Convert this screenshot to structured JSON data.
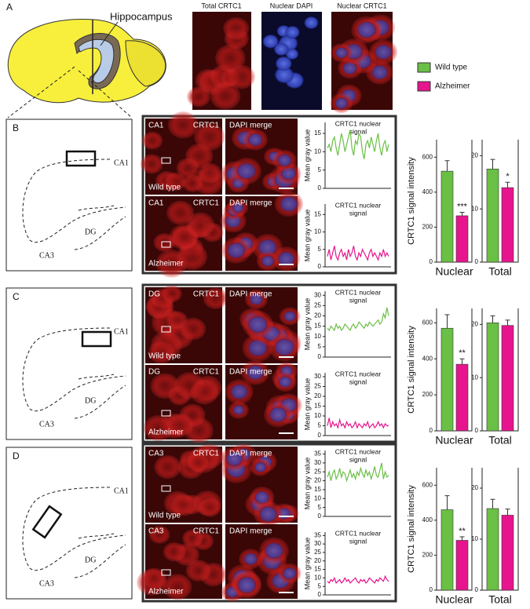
{
  "panel_a": {
    "label": "A",
    "hippocampus": "Hippocampus",
    "image_titles": [
      "Total CRTC1",
      "Nuclear DAPI",
      "Nuclear CRTC1"
    ]
  },
  "legend": [
    {
      "name": "Wild type",
      "color": "#6abf45"
    },
    {
      "name": "Alzheimer",
      "color": "#e6158d"
    }
  ],
  "panels": [
    {
      "label": "B",
      "diagram_labels": [
        "CA1",
        "DG",
        "CA3"
      ],
      "region": "CA1",
      "stain": "CRTC1",
      "merge": "DAPI merge",
      "row_labels": [
        "Wild type",
        "Alzheimer"
      ]
    },
    {
      "label": "C",
      "diagram_labels": [
        "CA1",
        "DG",
        "CA3"
      ],
      "region": "DG",
      "stain": "CRTC1",
      "merge": "DAPI merge",
      "row_labels": [
        "Wild type",
        "Alzheimer"
      ]
    },
    {
      "label": "D",
      "diagram_labels": [
        "CA1",
        "DG",
        "CA3"
      ],
      "region": "CA3",
      "stain": "CRTC1",
      "merge": "DAPI merge",
      "row_labels": [
        "Wild type",
        "Alzheimer"
      ]
    }
  ],
  "chart_data": [
    {
      "type": "line",
      "title_lines": [
        "CRTC1 nuclear",
        "signal"
      ],
      "ylabel": "Mean gray value",
      "ylim": [
        0,
        18
      ],
      "yticks": [
        0,
        5,
        10,
        15
      ],
      "series": [
        {
          "color": "#6abf45",
          "values": [
            11,
            12,
            10,
            13,
            14,
            11,
            9,
            12,
            15,
            13,
            10,
            12,
            14,
            16,
            11,
            9,
            13,
            12,
            15,
            14,
            10,
            8,
            12,
            13,
            11,
            14,
            12,
            10,
            13,
            15,
            11,
            9,
            12,
            13,
            10,
            12
          ]
        }
      ]
    },
    {
      "type": "line",
      "title_lines": [
        "CRTC1 nuclear",
        "signal"
      ],
      "ylabel": "Mean gray value",
      "ylim": [
        0,
        18
      ],
      "yticks": [
        0,
        5,
        10,
        15
      ],
      "series": [
        {
          "color": "#e6158d",
          "values": [
            3,
            5,
            2,
            4,
            6,
            3,
            2,
            4,
            5,
            3,
            4,
            2,
            5,
            3,
            4,
            6,
            3,
            2,
            4,
            3,
            5,
            4,
            3,
            2,
            4,
            5,
            3,
            4,
            3,
            2,
            4,
            3,
            5,
            3,
            4,
            3
          ]
        }
      ]
    },
    {
      "type": "bar",
      "xlabel": "Nuclear",
      "ylabel": "CRTC1 signal intensity",
      "ylim": [
        0,
        700
      ],
      "yticks": [
        0,
        200,
        400,
        600
      ],
      "values": [
        520,
        265
      ],
      "errors": [
        60,
        20
      ],
      "colors": [
        "#6abf45",
        "#e6158d"
      ],
      "significance": "***"
    },
    {
      "type": "bar",
      "xlabel": "Total",
      "ylim": [
        0,
        23
      ],
      "yticks": [
        0,
        10,
        20
      ],
      "values": [
        17.5,
        14
      ],
      "errors": [
        1.8,
        1
      ],
      "colors": [
        "#6abf45",
        "#e6158d"
      ],
      "significance": "*"
    },
    {
      "type": "line",
      "title_lines": [
        "CRTC1 nuclear",
        "signal"
      ],
      "ylabel": "Mean gray value",
      "ylim": [
        0,
        32
      ],
      "yticks": [
        0,
        5,
        10,
        15,
        20,
        25,
        30
      ],
      "series": [
        {
          "color": "#6abf45",
          "values": [
            14,
            13,
            15,
            14,
            13,
            16,
            14,
            15,
            13,
            14,
            16,
            15,
            14,
            13,
            15,
            16,
            14,
            15,
            17,
            16,
            15,
            14,
            16,
            15,
            17,
            16,
            15,
            16,
            17,
            18,
            16,
            17,
            21,
            19,
            24,
            20
          ]
        }
      ]
    },
    {
      "type": "line",
      "title_lines": [
        "CRTC1 nuclear",
        "signal"
      ],
      "ylabel": "Mean gray value",
      "ylim": [
        0,
        32
      ],
      "yticks": [
        0,
        5,
        10,
        15,
        20,
        25,
        30
      ],
      "series": [
        {
          "color": "#e6158d",
          "values": [
            5,
            9,
            4,
            7,
            5,
            6,
            4,
            8,
            5,
            6,
            4,
            7,
            5,
            6,
            4,
            5,
            7,
            4,
            6,
            5,
            4,
            6,
            5,
            7,
            4,
            5,
            6,
            4,
            5,
            7,
            5,
            6,
            4,
            6,
            5,
            5
          ]
        }
      ]
    },
    {
      "type": "bar",
      "xlabel": "Nuclear",
      "ylabel": "CRTC1 signal intensity",
      "ylim": [
        0,
        680
      ],
      "yticks": [
        0,
        200,
        400,
        600
      ],
      "values": [
        570,
        370
      ],
      "errors": [
        75,
        30
      ],
      "colors": [
        "#6abf45",
        "#e6158d"
      ],
      "significance": "**"
    },
    {
      "type": "bar",
      "xlabel": "Total",
      "ylim": [
        0,
        23
      ],
      "yticks": [
        0,
        10,
        20
      ],
      "values": [
        20.3,
        19.8
      ],
      "errors": [
        1.3,
        1
      ],
      "colors": [
        "#6abf45",
        "#e6158d"
      ]
    },
    {
      "type": "line",
      "title_lines": [
        "CRTC1 nuclear",
        "signal"
      ],
      "ylabel": "Mean gray value",
      "ylim": [
        0,
        37
      ],
      "yticks": [
        0,
        5,
        10,
        15,
        20,
        25,
        30,
        35
      ],
      "series": [
        {
          "color": "#6abf45",
          "values": [
            22,
            25,
            20,
            24,
            26,
            21,
            23,
            27,
            22,
            25,
            24,
            20,
            23,
            26,
            22,
            24,
            21,
            25,
            23,
            27,
            24,
            22,
            26,
            23,
            25,
            21,
            24,
            28,
            23,
            22,
            26,
            30,
            21,
            25,
            22,
            23
          ]
        }
      ]
    },
    {
      "type": "line",
      "title_lines": [
        "CRTC1 nuclear",
        "signal"
      ],
      "ylabel": "Mean gray value",
      "ylim": [
        0,
        37
      ],
      "yticks": [
        0,
        5,
        10,
        15,
        20,
        25,
        30,
        35
      ],
      "series": [
        {
          "color": "#e6158d",
          "values": [
            8,
            7,
            9,
            8,
            10,
            7,
            8,
            9,
            7,
            8,
            10,
            8,
            9,
            7,
            8,
            9,
            10,
            8,
            7,
            9,
            8,
            9,
            7,
            8,
            10,
            9,
            8,
            7,
            9,
            8,
            10,
            9,
            8,
            11,
            9,
            8
          ]
        }
      ]
    },
    {
      "type": "bar",
      "xlabel": "Nuclear",
      "ylabel": "CRTC1 signal intensity",
      "ylim": [
        0,
        700
      ],
      "yticks": [
        0,
        200,
        400,
        600
      ],
      "values": [
        460,
        285
      ],
      "errors": [
        80,
        20
      ],
      "colors": [
        "#6abf45",
        "#e6158d"
      ],
      "significance": "**"
    },
    {
      "type": "bar",
      "xlabel": "Total",
      "ylim": [
        0,
        24
      ],
      "yticks": [
        0,
        10,
        20
      ],
      "values": [
        16,
        14.7
      ],
      "errors": [
        1.8,
        1.2
      ],
      "colors": [
        "#6abf45",
        "#e6158d"
      ]
    }
  ]
}
